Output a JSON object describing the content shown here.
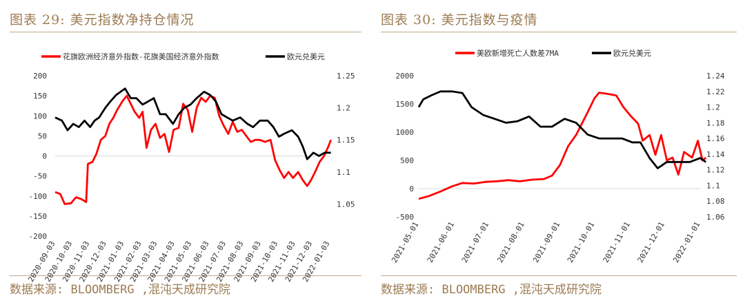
{
  "left": {
    "title": "图表 29: 美元指数净持仓情况",
    "source": "数据来源: BLOOMBERG ,混沌天成研究院"
  },
  "right": {
    "title": "图表 30: 美元指数与疫情",
    "source": "数据来源: BLOOMBERG ,混沌天成研究院"
  },
  "colors": {
    "red": "#ff0000",
    "black": "#000000",
    "accent": "#9c7b52"
  },
  "chart_data": [
    {
      "type": "line",
      "legend_position": "top",
      "x_ticks": [
        "2020-09-03",
        "2020-10-03",
        "2020-11-03",
        "2020-12-03",
        "2021-01-03",
        "2021-02-03",
        "2021-03-03",
        "2021-04-03",
        "2021-05-03",
        "2021-06-03",
        "2021-07-03",
        "2021-08-03",
        "2021-09-03",
        "2021-10-03",
        "2021-11-03",
        "2021-12-03",
        "2022-01-03"
      ],
      "y_left": {
        "ticks": [
          "200",
          "150",
          "100",
          "50",
          "0",
          "-50",
          "-100",
          "-150",
          "-200"
        ],
        "range": [
          -200,
          200
        ]
      },
      "y_right": {
        "ticks": [
          "1.25",
          "1.2",
          "1.15",
          "1.1",
          "1.05"
        ],
        "range": [
          1.0,
          1.25
        ]
      },
      "series": [
        {
          "name": "花旗欧洲经济意外指数-花旗美国经济意外指数",
          "color": "#ff0000",
          "axis": "left",
          "points": [
            [
              "2020-09-03",
              -90
            ],
            [
              "2020-09-12",
              -95
            ],
            [
              "2020-09-20",
              -120
            ],
            [
              "2020-10-01",
              -118
            ],
            [
              "2020-10-10",
              -103
            ],
            [
              "2020-10-20",
              -108
            ],
            [
              "2020-10-28",
              -115
            ],
            [
              "2020-10-31",
              -20
            ],
            [
              "2020-11-08",
              -15
            ],
            [
              "2020-11-15",
              5
            ],
            [
              "2020-11-23",
              40
            ],
            [
              "2020-12-01",
              50
            ],
            [
              "2020-12-08",
              80
            ],
            [
              "2020-12-15",
              95
            ],
            [
              "2020-12-22",
              115
            ],
            [
              "2021-01-01",
              138
            ],
            [
              "2021-01-08",
              150
            ],
            [
              "2021-01-15",
              130
            ],
            [
              "2021-01-22",
              110
            ],
            [
              "2021-01-30",
              95
            ],
            [
              "2021-02-05",
              110
            ],
            [
              "2021-02-12",
              20
            ],
            [
              "2021-02-20",
              65
            ],
            [
              "2021-02-28",
              80
            ],
            [
              "2021-03-08",
              45
            ],
            [
              "2021-03-16",
              55
            ],
            [
              "2021-03-24",
              10
            ],
            [
              "2021-04-01",
              65
            ],
            [
              "2021-04-10",
              70
            ],
            [
              "2021-04-18",
              130
            ],
            [
              "2021-04-26",
              115
            ],
            [
              "2021-05-04",
              60
            ],
            [
              "2021-05-12",
              120
            ],
            [
              "2021-05-20",
              145
            ],
            [
              "2021-05-28",
              135
            ],
            [
              "2021-06-05",
              150
            ],
            [
              "2021-06-13",
              145
            ],
            [
              "2021-06-21",
              100
            ],
            [
              "2021-06-29",
              75
            ],
            [
              "2021-07-07",
              55
            ],
            [
              "2021-07-15",
              85
            ],
            [
              "2021-07-23",
              60
            ],
            [
              "2021-07-31",
              65
            ],
            [
              "2021-08-08",
              50
            ],
            [
              "2021-08-16",
              35
            ],
            [
              "2021-08-24",
              40
            ],
            [
              "2021-09-01",
              40
            ],
            [
              "2021-09-10",
              35
            ],
            [
              "2021-09-20",
              40
            ],
            [
              "2021-09-28",
              -10
            ],
            [
              "2021-10-06",
              -35
            ],
            [
              "2021-10-14",
              -55
            ],
            [
              "2021-10-22",
              -40
            ],
            [
              "2021-10-30",
              -55
            ],
            [
              "2021-11-08",
              -40
            ],
            [
              "2021-11-16",
              -60
            ],
            [
              "2021-11-24",
              -75
            ],
            [
              "2021-12-01",
              -60
            ],
            [
              "2021-12-08",
              -40
            ],
            [
              "2021-12-16",
              -15
            ],
            [
              "2021-12-24",
              0
            ],
            [
              "2022-01-01",
              25
            ],
            [
              "2022-01-05",
              40
            ]
          ]
        },
        {
          "name": "欧元兑美元",
          "color": "#000000",
          "axis": "right",
          "points": [
            [
              "2020-09-03",
              1.185
            ],
            [
              "2020-09-15",
              1.18
            ],
            [
              "2020-09-25",
              1.165
            ],
            [
              "2020-10-05",
              1.175
            ],
            [
              "2020-10-15",
              1.17
            ],
            [
              "2020-10-25",
              1.18
            ],
            [
              "2020-11-04",
              1.17
            ],
            [
              "2020-11-12",
              1.18
            ],
            [
              "2020-11-20",
              1.185
            ],
            [
              "2020-12-01",
              1.2
            ],
            [
              "2020-12-10",
              1.21
            ],
            [
              "2020-12-20",
              1.22
            ],
            [
              "2021-01-05",
              1.23
            ],
            [
              "2021-01-15",
              1.215
            ],
            [
              "2021-01-25",
              1.215
            ],
            [
              "2021-02-05",
              1.205
            ],
            [
              "2021-02-15",
              1.21
            ],
            [
              "2021-02-25",
              1.215
            ],
            [
              "2021-03-08",
              1.19
            ],
            [
              "2021-03-18",
              1.19
            ],
            [
              "2021-03-31",
              1.175
            ],
            [
              "2021-04-10",
              1.19
            ],
            [
              "2021-04-20",
              1.2
            ],
            [
              "2021-05-01",
              1.205
            ],
            [
              "2021-05-12",
              1.215
            ],
            [
              "2021-05-25",
              1.225
            ],
            [
              "2021-06-05",
              1.22
            ],
            [
              "2021-06-15",
              1.21
            ],
            [
              "2021-06-25",
              1.19
            ],
            [
              "2021-07-05",
              1.185
            ],
            [
              "2021-07-15",
              1.18
            ],
            [
              "2021-07-28",
              1.185
            ],
            [
              "2021-08-10",
              1.175
            ],
            [
              "2021-08-20",
              1.17
            ],
            [
              "2021-09-01",
              1.18
            ],
            [
              "2021-09-15",
              1.18
            ],
            [
              "2021-09-25",
              1.17
            ],
            [
              "2021-10-05",
              1.155
            ],
            [
              "2021-10-15",
              1.16
            ],
            [
              "2021-10-28",
              1.165
            ],
            [
              "2021-11-08",
              1.155
            ],
            [
              "2021-11-16",
              1.14
            ],
            [
              "2021-11-24",
              1.12
            ],
            [
              "2021-12-05",
              1.13
            ],
            [
              "2021-12-15",
              1.125
            ],
            [
              "2021-12-25",
              1.13
            ],
            [
              "2022-01-05",
              1.13
            ]
          ]
        }
      ]
    },
    {
      "type": "line",
      "legend_position": "top",
      "x_ticks": [
        "2021-05-01",
        "2021-06-01",
        "2021-07-01",
        "2021-08-01",
        "2021-09-01",
        "2021-10-01",
        "2021-11-01",
        "2021-12-01",
        "2022-01-01"
      ],
      "y_left": {
        "ticks": [
          "2000",
          "1500",
          "1000",
          "500",
          "0",
          "-500"
        ],
        "range": [
          -500,
          2000
        ]
      },
      "y_right": {
        "ticks": [
          "1.24",
          "1.22",
          "1.2",
          "1.18",
          "1.16",
          "1.14",
          "1.12",
          "1.1",
          "1.08",
          "1.06"
        ],
        "range": [
          1.06,
          1.24
        ]
      },
      "series": [
        {
          "name": "美欧新增死亡人数差7MA",
          "color": "#ff0000",
          "axis": "left",
          "points": [
            [
              "2021-05-01",
              -180
            ],
            [
              "2021-05-10",
              -130
            ],
            [
              "2021-05-20",
              -50
            ],
            [
              "2021-05-30",
              40
            ],
            [
              "2021-06-08",
              100
            ],
            [
              "2021-06-18",
              90
            ],
            [
              "2021-06-28",
              120
            ],
            [
              "2021-07-08",
              130
            ],
            [
              "2021-07-18",
              150
            ],
            [
              "2021-07-28",
              130
            ],
            [
              "2021-08-08",
              160
            ],
            [
              "2021-08-18",
              170
            ],
            [
              "2021-08-25",
              230
            ],
            [
              "2021-09-01",
              420
            ],
            [
              "2021-09-08",
              750
            ],
            [
              "2021-09-15",
              950
            ],
            [
              "2021-09-20",
              1150
            ],
            [
              "2021-09-25",
              1350
            ],
            [
              "2021-10-01",
              1600
            ],
            [
              "2021-10-05",
              1700
            ],
            [
              "2021-10-12",
              1680
            ],
            [
              "2021-10-20",
              1650
            ],
            [
              "2021-10-26",
              1450
            ],
            [
              "2021-11-01",
              1300
            ],
            [
              "2021-11-08",
              1150
            ],
            [
              "2021-11-12",
              850
            ],
            [
              "2021-11-18",
              950
            ],
            [
              "2021-11-23",
              600
            ],
            [
              "2021-11-28",
              950
            ],
            [
              "2021-12-03",
              500
            ],
            [
              "2021-12-08",
              550
            ],
            [
              "2021-12-13",
              250
            ],
            [
              "2021-12-18",
              650
            ],
            [
              "2021-12-25",
              550
            ],
            [
              "2021-12-30",
              850
            ],
            [
              "2022-01-03",
              500
            ],
            [
              "2022-01-06",
              550
            ]
          ]
        },
        {
          "name": "欧元兑美元",
          "color": "#000000",
          "axis": "right",
          "points": [
            [
              "2021-05-01",
              1.2
            ],
            [
              "2021-05-05",
              1.21
            ],
            [
              "2021-05-12",
              1.215
            ],
            [
              "2021-05-20",
              1.22
            ],
            [
              "2021-05-30",
              1.22
            ],
            [
              "2021-06-08",
              1.218
            ],
            [
              "2021-06-16",
              1.2
            ],
            [
              "2021-06-26",
              1.19
            ],
            [
              "2021-07-06",
              1.185
            ],
            [
              "2021-07-16",
              1.18
            ],
            [
              "2021-07-26",
              1.182
            ],
            [
              "2021-08-05",
              1.188
            ],
            [
              "2021-08-15",
              1.175
            ],
            [
              "2021-08-25",
              1.175
            ],
            [
              "2021-09-05",
              1.185
            ],
            [
              "2021-09-15",
              1.18
            ],
            [
              "2021-09-25",
              1.165
            ],
            [
              "2021-10-05",
              1.16
            ],
            [
              "2021-10-15",
              1.16
            ],
            [
              "2021-10-25",
              1.16
            ],
            [
              "2021-11-03",
              1.155
            ],
            [
              "2021-11-10",
              1.155
            ],
            [
              "2021-11-18",
              1.135
            ],
            [
              "2021-11-25",
              1.122
            ],
            [
              "2021-12-03",
              1.13
            ],
            [
              "2021-12-13",
              1.13
            ],
            [
              "2021-12-23",
              1.13
            ],
            [
              "2022-01-01",
              1.135
            ],
            [
              "2022-01-06",
              1.13
            ]
          ]
        }
      ]
    }
  ]
}
